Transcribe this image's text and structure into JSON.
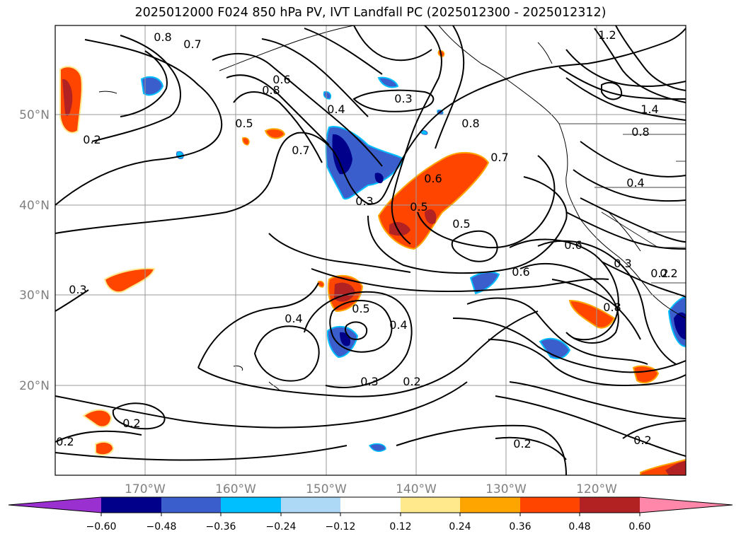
{
  "title": "2025012000 F024 850 hPa PV, IVT Landfall PC (2025012300 - 2025012312)",
  "map": {
    "lat_ticks": [
      "50°N",
      "40°N",
      "30°N",
      "20°N"
    ],
    "lon_ticks": [
      "170°W",
      "160°W",
      "150°W",
      "140°W",
      "130°W",
      "120°W"
    ],
    "contour_labels": [
      "0.8",
      "0.7",
      "0.6",
      "0.8",
      "0.5",
      "0.7",
      "0.4",
      "0.3",
      "0.2",
      "0.3",
      "0.6",
      "0.5",
      "0.7",
      "0.8",
      "0.5",
      "0.6",
      "0.4",
      "0.5",
      "0.4",
      "0.3",
      "0.2",
      "0.2",
      "0.2",
      "0.2",
      "0.2",
      "0.8",
      "1.4",
      "1.2",
      "0.4",
      "0.3",
      "0.2",
      "0.3",
      "0.8",
      "0.6",
      "0.2"
    ]
  },
  "colorbar": {
    "ticks": [
      "−0.60",
      "−0.48",
      "−0.36",
      "−0.24",
      "−0.12",
      "0.12",
      "0.24",
      "0.36",
      "0.48",
      "0.60"
    ],
    "colors": [
      "#9b30d0",
      "#00008b",
      "#3a5fcd",
      "#00bfff",
      "#add8f6",
      "#ffffff",
      "#ffe98c",
      "#ffa500",
      "#ff4500",
      "#b22222",
      "#ff88aa"
    ]
  }
}
